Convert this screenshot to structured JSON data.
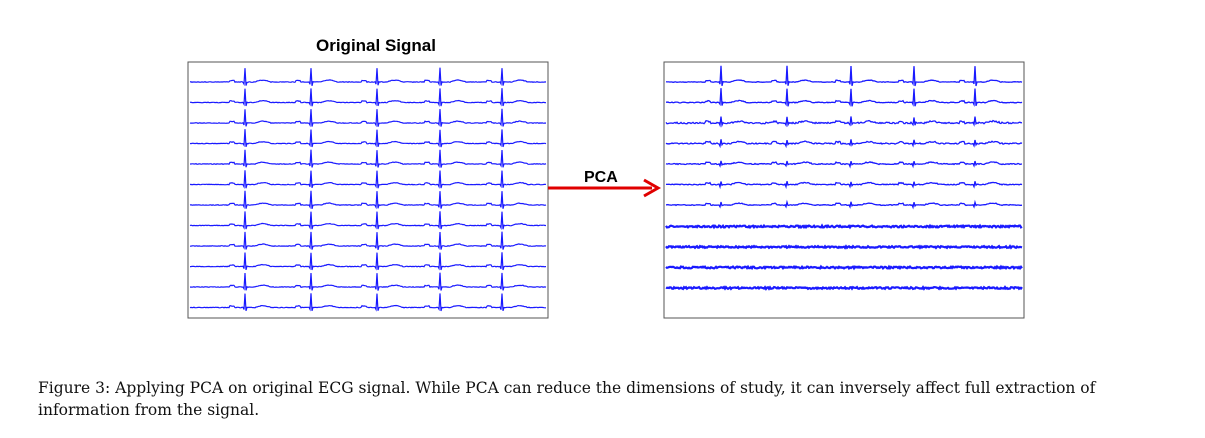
{
  "figure": {
    "left_panel_title": "Original Signal",
    "arrow_label": "PCA",
    "colors": {
      "trace": "#1a1aff",
      "arrow": "#e00000",
      "frame": "#555555"
    }
  },
  "caption": "Figure 3: Applying PCA on original ECG signal. While PCA can reduce the dimensions of study, it can inversely affect full extraction of information from the signal."
}
